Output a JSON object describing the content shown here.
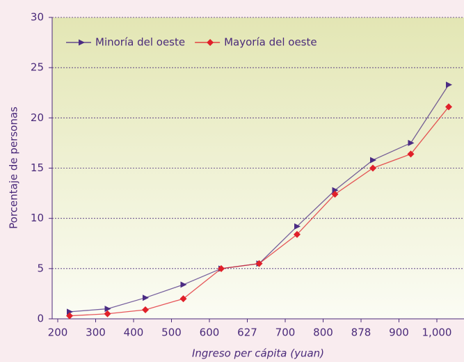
{
  "chart_data": {
    "type": "line",
    "x_label": "Ingreso per cápita (yuan)",
    "y_label": "Porcentaje de personas",
    "categories": [
      "200",
      "300",
      "400",
      "500",
      "600",
      "627",
      "700",
      "800",
      "878",
      "900",
      "1,000"
    ],
    "series": [
      {
        "name": "Minoría del oeste",
        "color": "#4b2c83",
        "marker": "triangle",
        "values": [
          0.7,
          1.0,
          2.1,
          3.4,
          5.0,
          5.5,
          9.2,
          12.8,
          15.8,
          17.5,
          23.3
        ]
      },
      {
        "name": "Mayoría del oeste",
        "color": "#e0202a",
        "marker": "diamond",
        "values": [
          0.3,
          0.5,
          0.9,
          2.0,
          5.0,
          5.5,
          8.4,
          12.4,
          15.0,
          16.4,
          21.1
        ]
      }
    ],
    "ylim": [
      0,
      30
    ],
    "yticks": [
      0,
      5,
      10,
      15,
      20,
      25,
      30
    ],
    "grid": true,
    "legend": "top-left"
  }
}
